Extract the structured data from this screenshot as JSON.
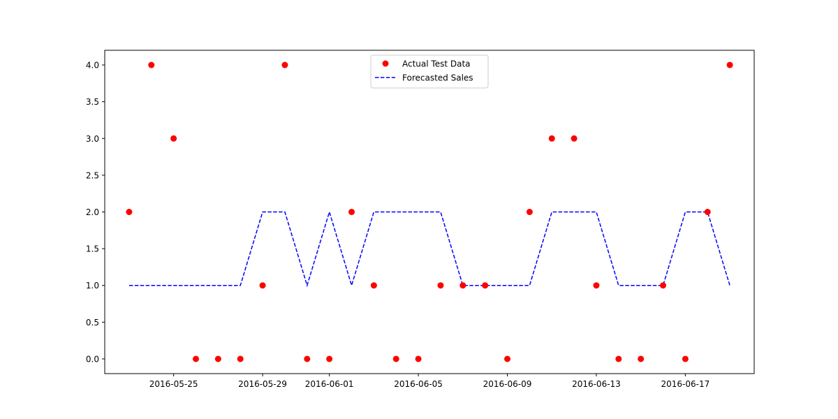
{
  "chart_data": {
    "type": "line",
    "x": [
      "2016-05-23",
      "2016-05-24",
      "2016-05-25",
      "2016-05-26",
      "2016-05-27",
      "2016-05-28",
      "2016-05-29",
      "2016-05-30",
      "2016-05-31",
      "2016-06-01",
      "2016-06-02",
      "2016-06-03",
      "2016-06-04",
      "2016-06-05",
      "2016-06-06",
      "2016-06-07",
      "2016-06-08",
      "2016-06-09",
      "2016-06-10",
      "2016-06-11",
      "2016-06-12",
      "2016-06-13",
      "2016-06-14",
      "2016-06-15",
      "2016-06-16",
      "2016-06-17",
      "2016-06-18",
      "2016-06-19"
    ],
    "series": [
      {
        "name": "Actual Test Data",
        "style": "scatter",
        "color": "#ff0000",
        "values": [
          2,
          4,
          3,
          0,
          0,
          0,
          1,
          4,
          0,
          0,
          2,
          1,
          0,
          0,
          1,
          1,
          1,
          0,
          2,
          3,
          3,
          1,
          0,
          0,
          1,
          0,
          2,
          4
        ]
      },
      {
        "name": "Forecasted Sales",
        "style": "dashed-line",
        "color": "#0000ff",
        "values": [
          1,
          1,
          1,
          1,
          1,
          1,
          2,
          2,
          1,
          2,
          1,
          2,
          2,
          2,
          2,
          1,
          1,
          1,
          1,
          2,
          2,
          2,
          1,
          1,
          1,
          2,
          2,
          1
        ]
      }
    ],
    "x_ticks": [
      "2016-05-25",
      "2016-05-29",
      "2016-06-01",
      "2016-06-05",
      "2016-06-09",
      "2016-06-13",
      "2016-06-17"
    ],
    "y_ticks": [
      "0.0",
      "0.5",
      "1.0",
      "1.5",
      "2.0",
      "2.5",
      "3.0",
      "3.5",
      "4.0"
    ],
    "xlim": [
      "2016-05-21 21:42",
      "2016-06-20 02:18"
    ],
    "ylim": [
      -0.2,
      4.2
    ],
    "title": "",
    "xlabel": "",
    "ylabel": "",
    "grid": false,
    "legend_position": "upper-center"
  }
}
